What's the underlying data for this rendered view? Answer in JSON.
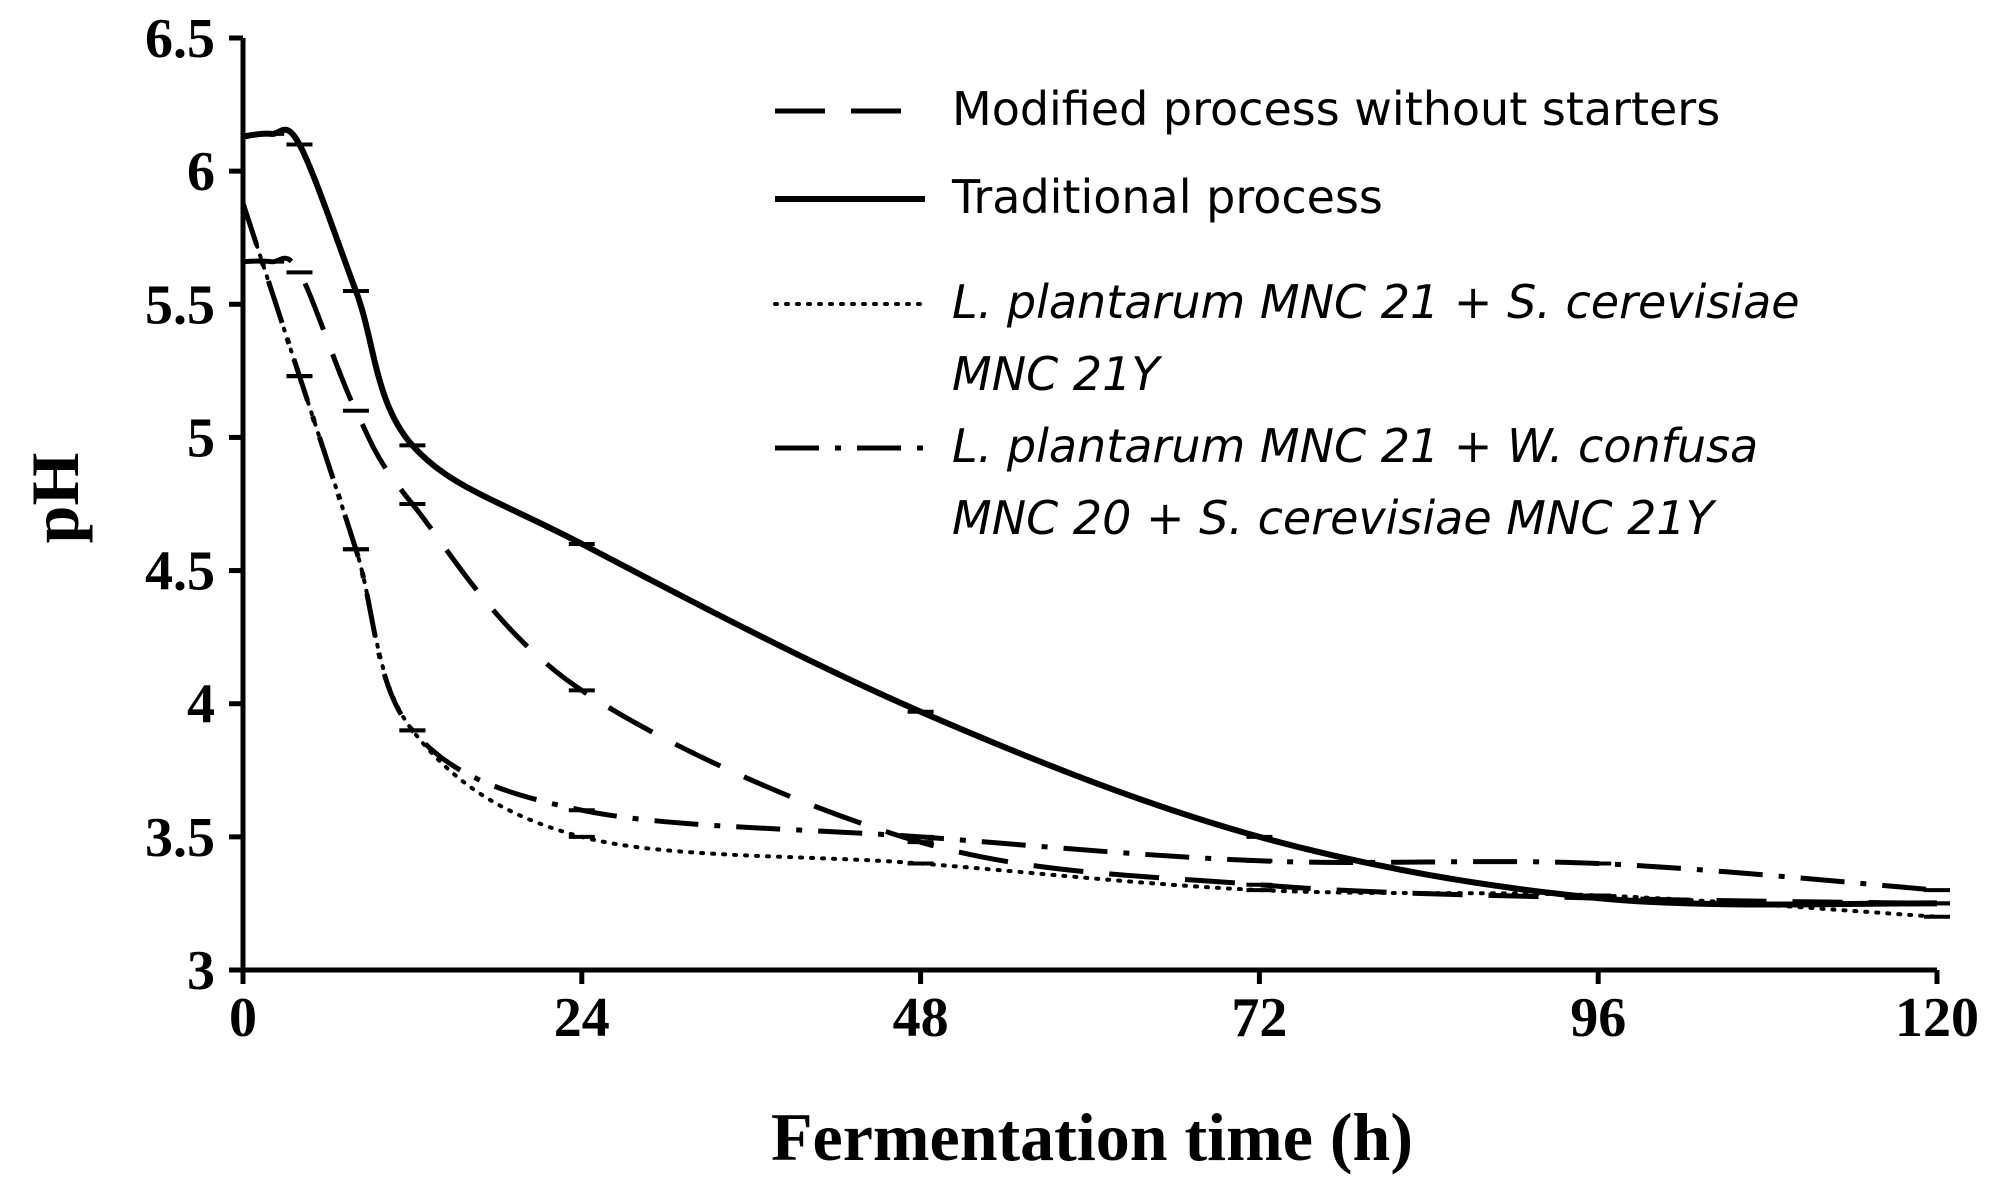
{
  "chart_data": {
    "type": "line",
    "xlabel": "Fermentation time (h)",
    "ylabel": "pH",
    "xlim": [
      0,
      120
    ],
    "ylim": [
      3,
      6.5
    ],
    "xticks": [
      "0",
      "24",
      "48",
      "72",
      "96",
      "120"
    ],
    "yticks": [
      "3",
      "3.5",
      "4",
      "4.5",
      "5",
      "5.5",
      "6",
      "6.5"
    ],
    "grid": false,
    "legend_position": "top-right",
    "series": [
      {
        "name": "Modified process without starters",
        "style": "dashed",
        "x": [
          0,
          2,
          4,
          8,
          12,
          24,
          48,
          72,
          96,
          120
        ],
        "y": [
          5.66,
          5.66,
          5.62,
          5.1,
          4.75,
          4.05,
          3.48,
          3.32,
          3.27,
          3.25
        ]
      },
      {
        "name": "Traditional process",
        "style": "solid",
        "x": [
          0,
          2,
          4,
          8,
          12,
          24,
          48,
          72,
          96,
          120
        ],
        "y": [
          6.13,
          6.14,
          6.1,
          5.55,
          4.97,
          4.6,
          3.97,
          3.5,
          3.27,
          3.25
        ]
      },
      {
        "name": "L. plantarum MNC 21 + S. cerevisiae MNC 21Y",
        "style": "dotted",
        "x": [
          0,
          4,
          8,
          12,
          24,
          48,
          72,
          96,
          120
        ],
        "y": [
          5.88,
          5.23,
          4.58,
          3.9,
          3.5,
          3.4,
          3.3,
          3.28,
          3.2
        ]
      },
      {
        "name": "L. plantarum MNC 21 + W. confusa MNC 20 + S. cerevisiae MNC 21Y",
        "style": "dashdot",
        "x": [
          0,
          4,
          8,
          12,
          24,
          48,
          72,
          96,
          120
        ],
        "y": [
          5.88,
          5.23,
          4.58,
          3.9,
          3.6,
          3.5,
          3.41,
          3.4,
          3.3
        ]
      }
    ],
    "legend": {
      "entries": [
        {
          "lines": [
            "Modified process without starters"
          ],
          "italic": false,
          "style": "dashed"
        },
        {
          "lines": [
            "Traditional process"
          ],
          "italic": false,
          "style": "solid"
        },
        {
          "lines": [
            "L. plantarum MNC 21 + S. cerevisiae",
            "MNC 21Y"
          ],
          "italic": true,
          "style": "dotted"
        },
        {
          "lines": [
            "L. plantarum MNC 21 + W. confusa",
            "MNC 20 + S. cerevisiae MNC 21Y"
          ],
          "italic": true,
          "style": "dashdot"
        }
      ]
    }
  }
}
